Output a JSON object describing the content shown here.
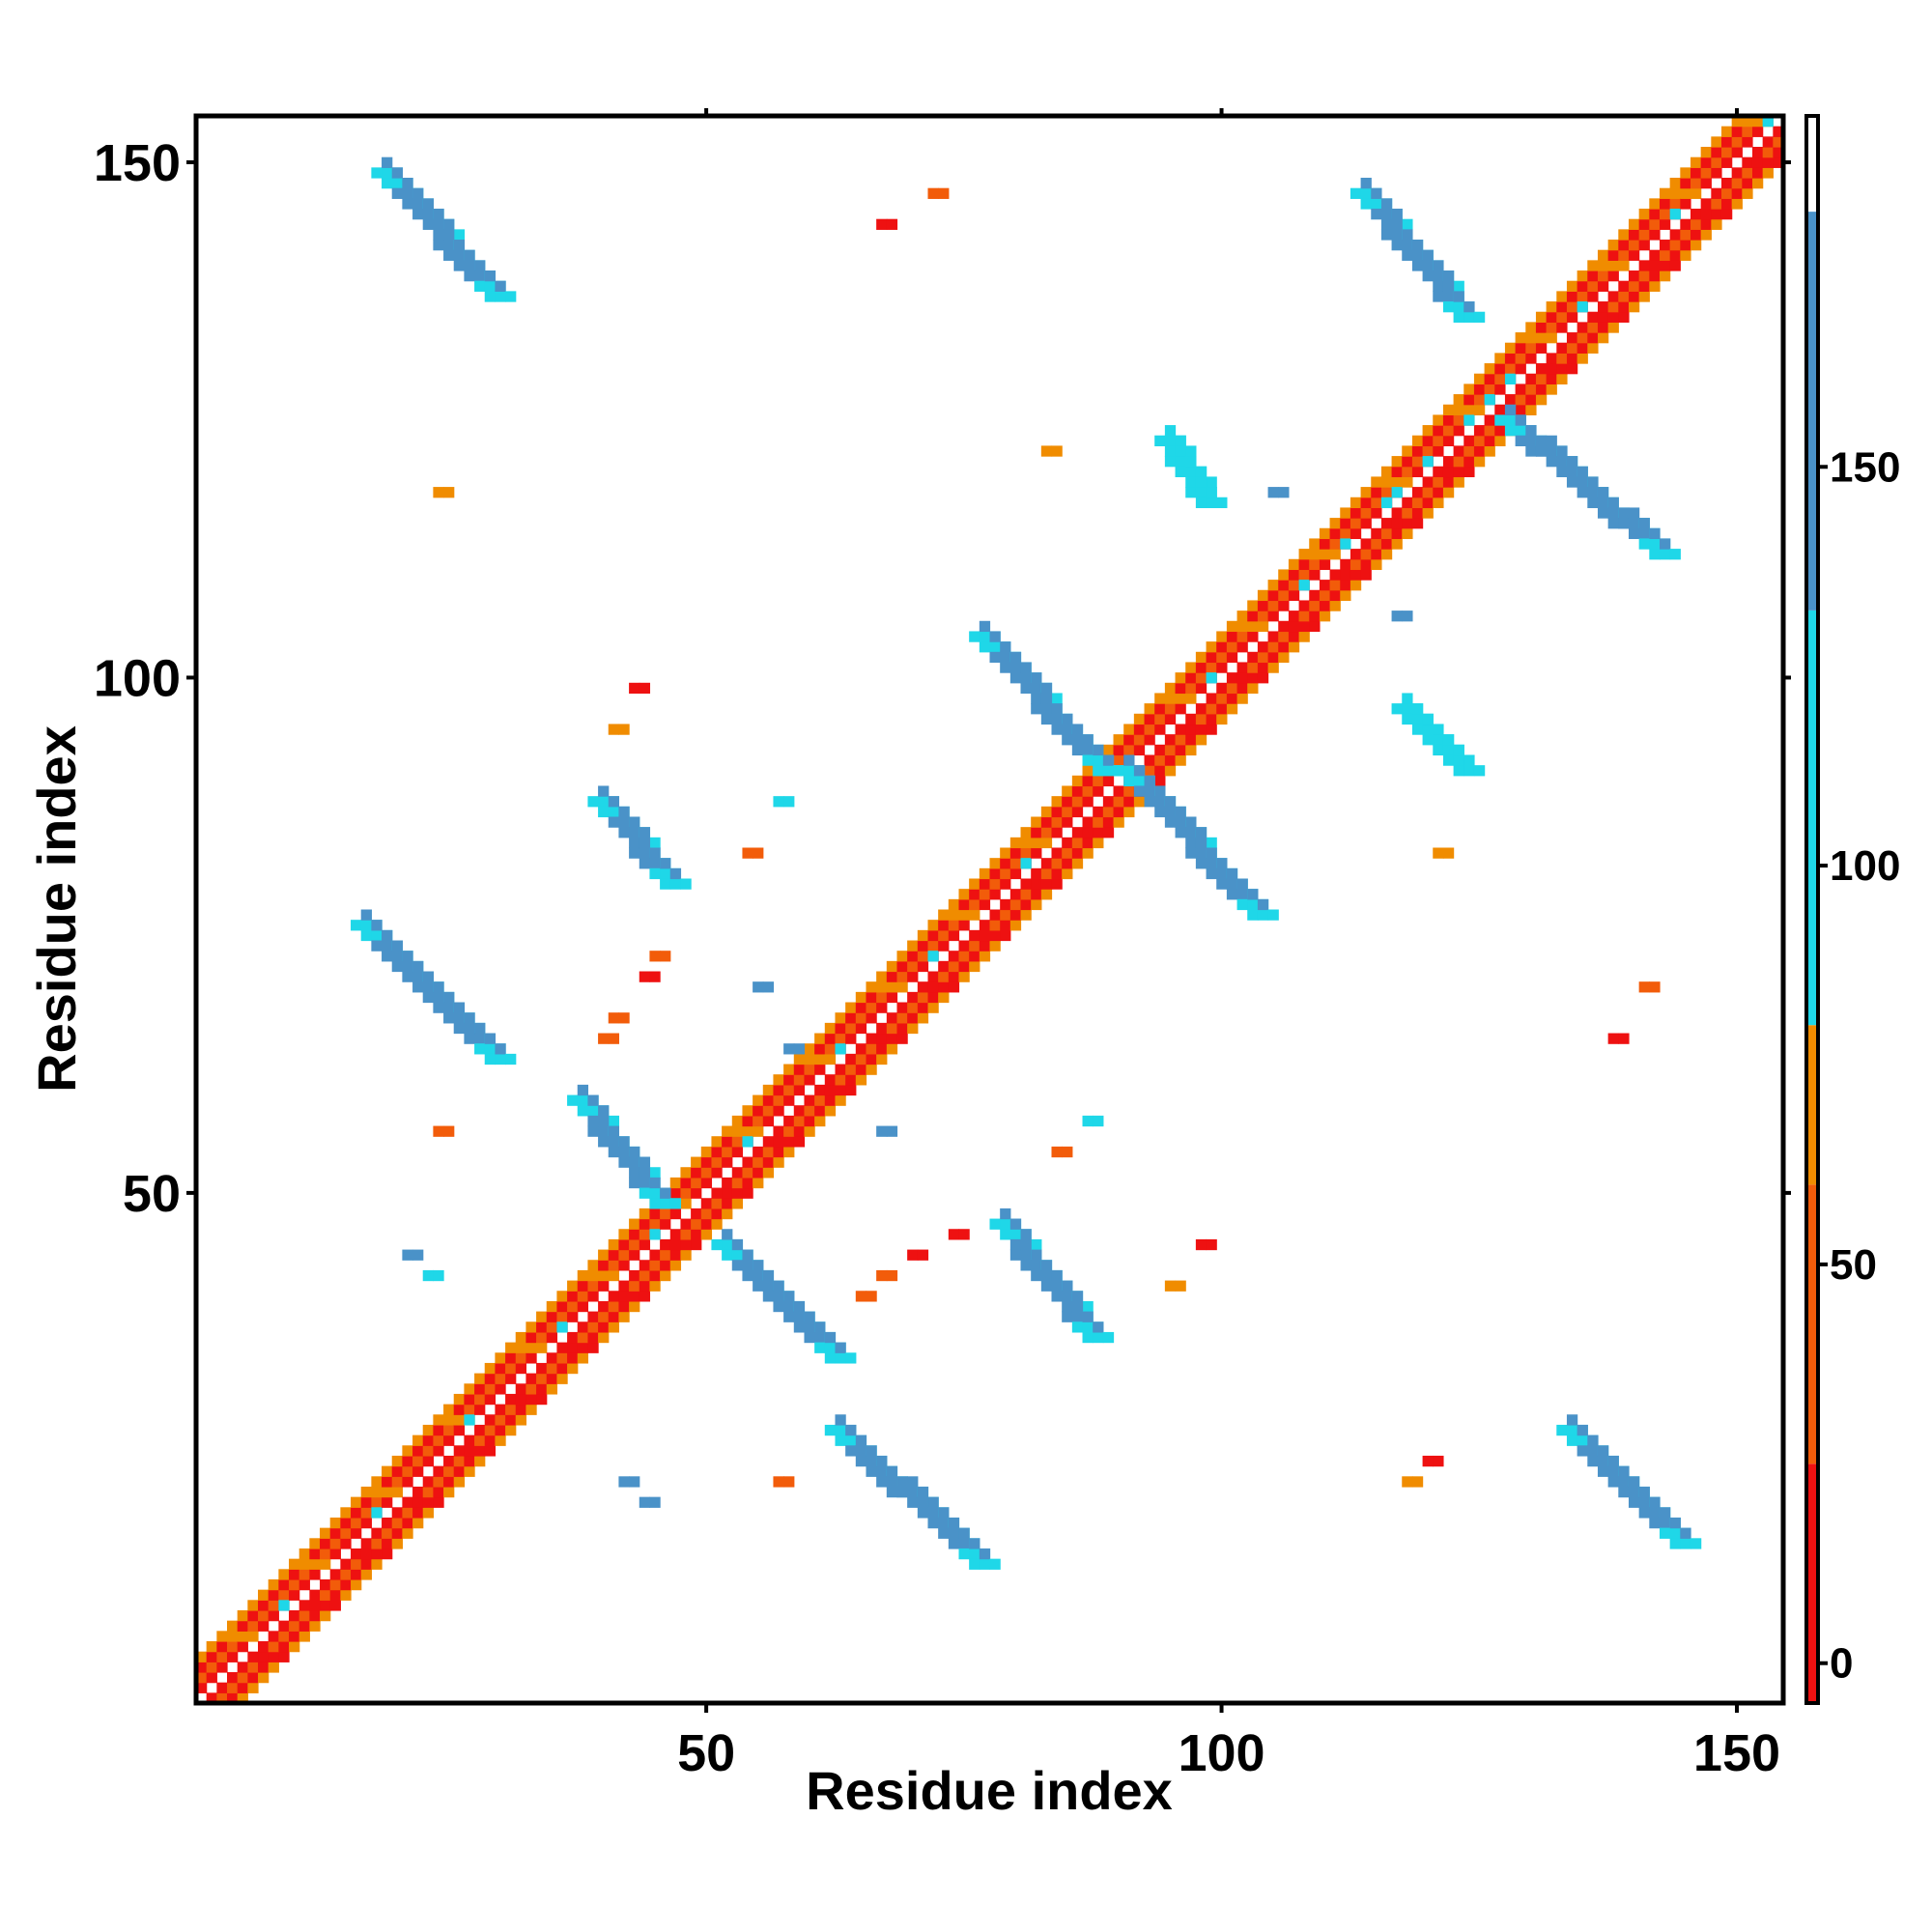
{
  "chart_data": {
    "type": "heatmap",
    "title": "",
    "xlabel": "Residue index",
    "ylabel": "Residue index",
    "xlim": [
      1,
      154
    ],
    "ylim": [
      1,
      154
    ],
    "x_ticks": [
      50,
      100,
      150
    ],
    "y_ticks": [
      50,
      100,
      150
    ],
    "grid": false,
    "legend": "right",
    "colorbar": {
      "ticks": [
        0,
        50,
        100,
        150
      ],
      "range": [
        -5,
        194
      ],
      "bands": [
        {
          "from": -5,
          "to": 25,
          "color": "#ee1111"
        },
        {
          "from": 25,
          "to": 60,
          "color": "#f25c0a"
        },
        {
          "from": 60,
          "to": 80,
          "color": "#f08c00"
        },
        {
          "from": 80,
          "to": 132,
          "color": "#1fd7e8"
        },
        {
          "from": 132,
          "to": 182,
          "color": "#4a92c8"
        },
        {
          "from": 182,
          "to": 194,
          "color": "#ffffff"
        }
      ]
    },
    "palette": {
      "red": "#ee1111",
      "orange_red": "#f25c0a",
      "orange": "#f08c00",
      "cyan": "#1fd7e8",
      "steel_blue": "#4a92c8"
    },
    "diagonal_band": {
      "start": 1,
      "end": 154,
      "width": 4
    },
    "blocks": [
      {
        "from": [
          19,
          149
        ],
        "to": [
          30,
          137
        ],
        "color": "steel_blue"
      },
      {
        "from": [
          17,
          76
        ],
        "to": [
          30,
          63
        ],
        "color": "steel_blue"
      },
      {
        "from": [
          38,
          59
        ],
        "to": [
          46,
          49
        ],
        "color": "steel_blue"
      },
      {
        "from": [
          40,
          88
        ],
        "to": [
          47,
          80
        ],
        "color": "steel_blue"
      },
      {
        "from": [
          52,
          45
        ],
        "to": [
          63,
          34
        ],
        "color": "steel_blue"
      },
      {
        "from": [
          63,
          27
        ],
        "to": [
          77,
          14
        ],
        "color": "steel_blue"
      },
      {
        "from": [
          77,
          104
        ],
        "to": [
          89,
          91
        ],
        "color": "steel_blue"
      },
      {
        "from": [
          91,
          91
        ],
        "to": [
          104,
          77
        ],
        "color": "steel_blue"
      },
      {
        "from": [
          79,
          47
        ],
        "to": [
          88,
          36
        ],
        "color": "steel_blue"
      },
      {
        "from": [
          95,
          123
        ],
        "to": [
          99,
          117
        ],
        "color": "cyan"
      },
      {
        "from": [
          114,
          147
        ],
        "to": [
          124,
          135
        ],
        "color": "steel_blue"
      },
      {
        "from": [
          128,
          125
        ],
        "to": [
          143,
          112
        ],
        "color": "steel_blue"
      },
      {
        "from": [
          118,
          97
        ],
        "to": [
          124,
          91
        ],
        "color": "cyan"
      },
      {
        "from": [
          134,
          27
        ],
        "to": [
          145,
          16
        ],
        "color": "steel_blue"
      }
    ],
    "points": [
      {
        "x": 72,
        "y": 147,
        "color": "orange_red"
      },
      {
        "x": 67,
        "y": 144,
        "color": "red"
      },
      {
        "x": 24,
        "y": 118,
        "color": "orange"
      },
      {
        "x": 83,
        "y": 122,
        "color": "orange"
      },
      {
        "x": 105,
        "y": 118,
        "color": "steel_blue"
      },
      {
        "x": 117,
        "y": 106,
        "color": "steel_blue"
      },
      {
        "x": 43,
        "y": 99,
        "color": "red"
      },
      {
        "x": 41,
        "y": 95,
        "color": "orange"
      },
      {
        "x": 57,
        "y": 88,
        "color": "cyan"
      },
      {
        "x": 54,
        "y": 83,
        "color": "orange_red"
      },
      {
        "x": 121,
        "y": 83,
        "color": "orange"
      },
      {
        "x": 45,
        "y": 73,
        "color": "orange_red"
      },
      {
        "x": 44,
        "y": 71,
        "color": "red"
      },
      {
        "x": 55,
        "y": 70,
        "color": "steel_blue"
      },
      {
        "x": 41,
        "y": 67,
        "color": "orange_red"
      },
      {
        "x": 40,
        "y": 65,
        "color": "orange_red"
      },
      {
        "x": 141,
        "y": 70,
        "color": "orange_red"
      },
      {
        "x": 138,
        "y": 65,
        "color": "red"
      },
      {
        "x": 58,
        "y": 64,
        "color": "steel_blue"
      },
      {
        "x": 67,
        "y": 56,
        "color": "steel_blue"
      },
      {
        "x": 87,
        "y": 57,
        "color": "cyan"
      },
      {
        "x": 84,
        "y": 54,
        "color": "orange_red"
      },
      {
        "x": 24,
        "y": 56,
        "color": "orange_red"
      },
      {
        "x": 21,
        "y": 44,
        "color": "steel_blue"
      },
      {
        "x": 23,
        "y": 42,
        "color": "cyan"
      },
      {
        "x": 74,
        "y": 46,
        "color": "red"
      },
      {
        "x": 70,
        "y": 44,
        "color": "red"
      },
      {
        "x": 67,
        "y": 42,
        "color": "orange_red"
      },
      {
        "x": 65,
        "y": 40,
        "color": "orange_red"
      },
      {
        "x": 98,
        "y": 45,
        "color": "red"
      },
      {
        "x": 95,
        "y": 41,
        "color": "orange"
      },
      {
        "x": 42,
        "y": 22,
        "color": "steel_blue"
      },
      {
        "x": 44,
        "y": 20,
        "color": "steel_blue"
      },
      {
        "x": 57,
        "y": 22,
        "color": "orange_red"
      },
      {
        "x": 118,
        "y": 22,
        "color": "orange"
      },
      {
        "x": 120,
        "y": 24,
        "color": "red"
      }
    ]
  }
}
